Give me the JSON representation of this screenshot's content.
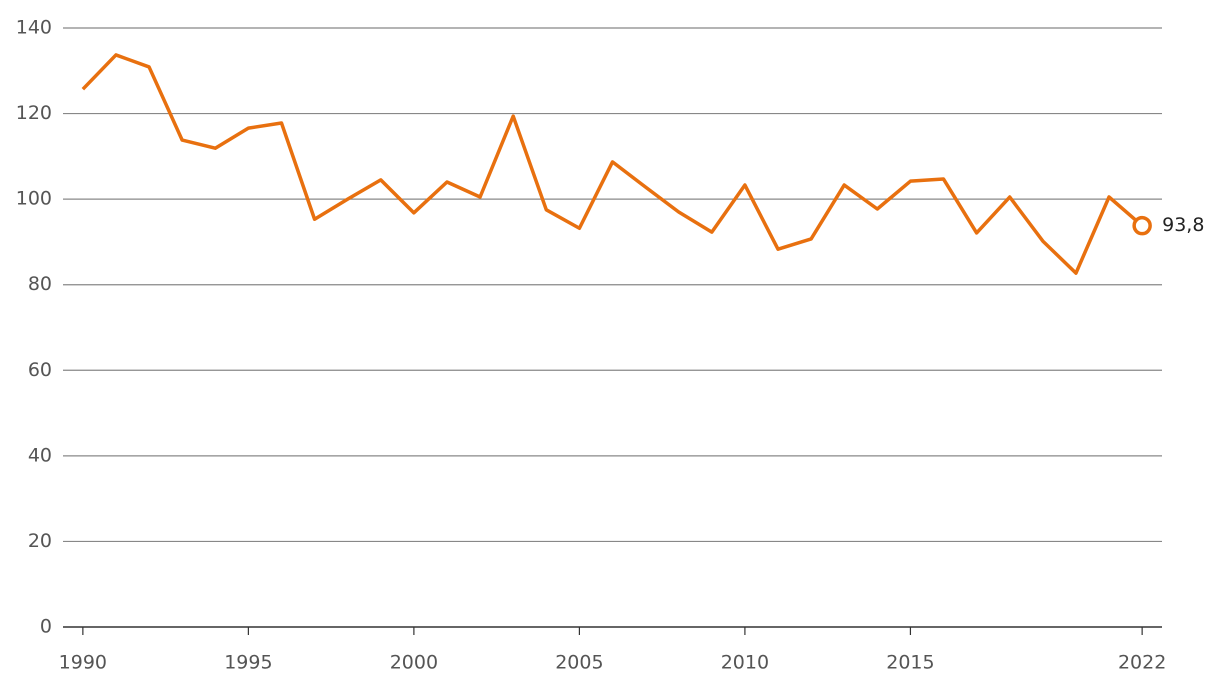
{
  "chart_data": {
    "type": "line",
    "x": [
      1990,
      1991,
      1992,
      1993,
      1994,
      1995,
      1996,
      1997,
      1998,
      1999,
      2000,
      2001,
      2002,
      2003,
      2004,
      2005,
      2006,
      2007,
      2008,
      2009,
      2010,
      2011,
      2012,
      2013,
      2014,
      2015,
      2016,
      2017,
      2018,
      2019,
      2020,
      2021,
      2022
    ],
    "series": [
      {
        "color": "#e8700f",
        "values": [
          125.7,
          133.7,
          130.9,
          113.8,
          111.9,
          116.6,
          117.8,
          95.3,
          100.0,
          104.5,
          96.8,
          104.0,
          100.5,
          119.4,
          97.5,
          93.2,
          108.7,
          102.8,
          97.0,
          92.3,
          103.3,
          88.3,
          90.7,
          103.3,
          97.7,
          104.2,
          104.7,
          92.1,
          100.5,
          90.2,
          82.7,
          100.5,
          93.8
        ],
        "value_labels": [
          null,
          null,
          null,
          null,
          null,
          null,
          null,
          null,
          null,
          null,
          null,
          null,
          null,
          null,
          null,
          null,
          null,
          null,
          null,
          null,
          null,
          null,
          null,
          null,
          null,
          null,
          null,
          null,
          null,
          null,
          null,
          null,
          "93,8"
        ]
      }
    ],
    "xlim": [
      1989.4,
      2022.6
    ],
    "xticks": [
      1990,
      1995,
      2000,
      2005,
      2010,
      2015,
      2022
    ],
    "ylim": [
      0,
      140
    ],
    "yticks": [
      0,
      20,
      40,
      60,
      80,
      100,
      120,
      140
    ],
    "grid": true
  }
}
